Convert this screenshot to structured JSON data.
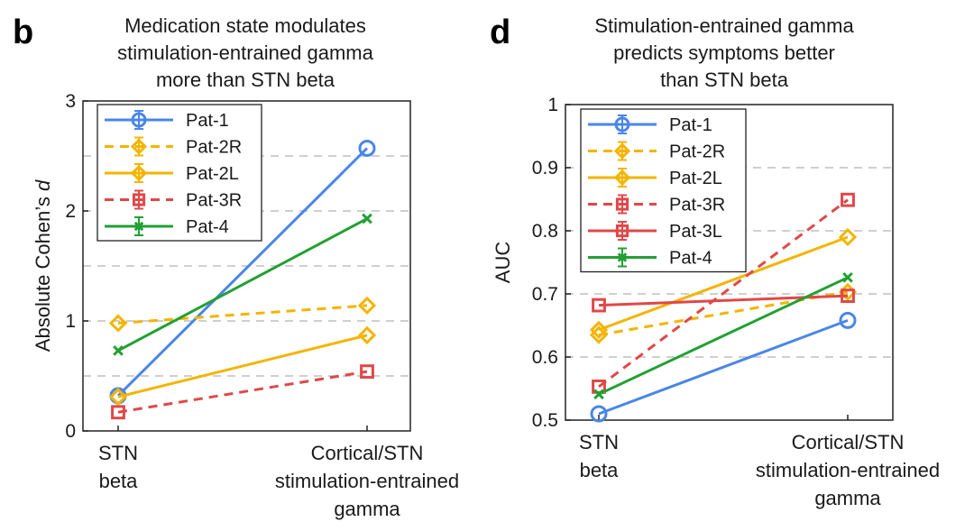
{
  "panels": [
    {
      "letter": "b",
      "title_lines": [
        "Medication state modulates",
        "stimulation-entrained gamma",
        "more than STN beta"
      ]
    },
    {
      "letter": "d",
      "title_lines": [
        "Stimulation-entrained gamma",
        "predicts symptoms better",
        "than STN beta"
      ]
    }
  ],
  "chart_data": [
    {
      "type": "line",
      "title": "Medication state modulates stimulation-entrained gamma more than STN beta",
      "ylabel_parts": [
        "Absolute Cohen’s ",
        "d"
      ],
      "categories": [
        [
          "STN",
          "beta"
        ],
        [
          "Cortical/STN",
          "stimulation-entrained",
          "gamma"
        ]
      ],
      "ylim": [
        0,
        3
      ],
      "yticks": [
        0,
        1,
        2,
        3
      ],
      "ytick_labels": [
        "0",
        "1",
        "2",
        "3"
      ],
      "grid_y": [
        0.5,
        1,
        1.5,
        2,
        2.5
      ],
      "legend_position": "top-left",
      "series": [
        {
          "name": "Pat-1",
          "color": "#4a86e8",
          "dash": false,
          "marker": "circle",
          "values": [
            0.32,
            2.57
          ]
        },
        {
          "name": "Pat-2R",
          "color": "#f4b400",
          "dash": true,
          "marker": "diamond",
          "values": [
            0.98,
            1.14
          ]
        },
        {
          "name": "Pat-2L",
          "color": "#f4b400",
          "dash": false,
          "marker": "diamond",
          "values": [
            0.31,
            0.87
          ]
        },
        {
          "name": "Pat-3R",
          "color": "#e04848",
          "dash": true,
          "marker": "square",
          "values": [
            0.17,
            0.54
          ]
        },
        {
          "name": "Pat-4",
          "color": "#22a033",
          "dash": false,
          "marker": "x",
          "values": [
            0.73,
            1.93
          ]
        }
      ]
    },
    {
      "type": "line",
      "title": "Stimulation-entrained gamma predicts symptoms better than STN beta",
      "ylabel_parts": [
        "AUC",
        ""
      ],
      "categories": [
        [
          "STN",
          "beta"
        ],
        [
          "Cortical/STN",
          "stimulation-entrained",
          "gamma"
        ]
      ],
      "ylim": [
        0.5,
        1.0
      ],
      "yticks": [
        0.5,
        0.6,
        0.7,
        0.8,
        0.9,
        1.0
      ],
      "ytick_labels": [
        "0.5",
        "0.6",
        "0.7",
        "0.8",
        "0.9",
        "1"
      ],
      "grid_y": [
        0.6,
        0.7,
        0.8,
        0.9
      ],
      "legend_position": "top-left",
      "series": [
        {
          "name": "Pat-1",
          "color": "#4a86e8",
          "dash": false,
          "marker": "circle",
          "values": [
            0.51,
            0.658
          ]
        },
        {
          "name": "Pat-2R",
          "color": "#f4b400",
          "dash": true,
          "marker": "diamond",
          "values": [
            0.635,
            0.703
          ]
        },
        {
          "name": "Pat-2L",
          "color": "#f4b400",
          "dash": false,
          "marker": "diamond",
          "values": [
            0.643,
            0.79
          ]
        },
        {
          "name": "Pat-3R",
          "color": "#e04848",
          "dash": true,
          "marker": "square",
          "values": [
            0.553,
            0.849
          ]
        },
        {
          "name": "Pat-3L",
          "color": "#e04848",
          "dash": false,
          "marker": "square",
          "values": [
            0.682,
            0.697
          ]
        },
        {
          "name": "Pat-4",
          "color": "#22a033",
          "dash": false,
          "marker": "x",
          "values": [
            0.541,
            0.726
          ]
        }
      ]
    }
  ]
}
